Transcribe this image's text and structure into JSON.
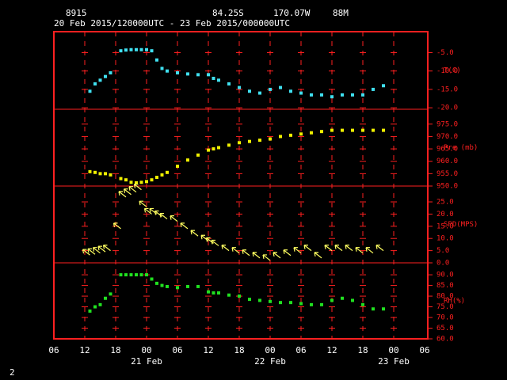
{
  "header": {
    "station": "8915",
    "latitude": "84.25S",
    "longitude": "170.07W",
    "elevation": "88M",
    "period": "20 Feb 2015/120000UTC - 23 Feb 2015/000000UTC"
  },
  "footer": "2",
  "time_axis": {
    "xlim": [
      "2015-02-20 06:00",
      "2015-02-23 06:00"
    ],
    "xticks": [
      {
        "value": "2015-02-20 06:00",
        "label": "06"
      },
      {
        "value": "2015-02-20 12:00",
        "label": "12"
      },
      {
        "value": "2015-02-20 18:00",
        "label": "18"
      },
      {
        "value": "2015-02-21 00:00",
        "label": "00"
      },
      {
        "value": "2015-02-21 06:00",
        "label": "06"
      },
      {
        "value": "2015-02-21 12:00",
        "label": "12"
      },
      {
        "value": "2015-02-21 18:00",
        "label": "18"
      },
      {
        "value": "2015-02-22 00:00",
        "label": "00"
      },
      {
        "value": "2015-02-22 06:00",
        "label": "06"
      },
      {
        "value": "2015-02-22 12:00",
        "label": "12"
      },
      {
        "value": "2015-02-22 18:00",
        "label": "18"
      },
      {
        "value": "2015-02-23 00:00",
        "label": "00"
      },
      {
        "value": "2015-02-23 06:00",
        "label": "06"
      }
    ],
    "day_ticks": [
      {
        "value": "2015-02-21 00:00",
        "label": "21 Feb"
      },
      {
        "value": "2015-02-22 00:00",
        "label": "22 Feb"
      },
      {
        "value": "2015-02-23 00:00",
        "label": "23 Feb"
      }
    ],
    "x": [
      "2015-02-20 13:00",
      "2015-02-20 14:00",
      "2015-02-20 15:00",
      "2015-02-20 16:00",
      "2015-02-20 17:00",
      "2015-02-20 19:00",
      "2015-02-20 20:00",
      "2015-02-20 21:00",
      "2015-02-20 22:00",
      "2015-02-20 23:00",
      "2015-02-21 00:00",
      "2015-02-21 01:00",
      "2015-02-21 02:00",
      "2015-02-21 03:00",
      "2015-02-21 04:00",
      "2015-02-21 06:00",
      "2015-02-21 08:00",
      "2015-02-21 10:00",
      "2015-02-21 12:00",
      "2015-02-21 13:00",
      "2015-02-21 14:00",
      "2015-02-21 16:00",
      "2015-02-21 18:00",
      "2015-02-21 20:00",
      "2015-02-21 22:00",
      "2015-02-22 00:00",
      "2015-02-22 02:00",
      "2015-02-22 04:00",
      "2015-02-22 06:00",
      "2015-02-22 08:00",
      "2015-02-22 10:00",
      "2015-02-22 12:00",
      "2015-02-22 14:00",
      "2015-02-22 16:00",
      "2015-02-22 18:00",
      "2015-02-22 20:00",
      "2015-02-22 22:00"
    ]
  },
  "chart_data": [
    {
      "type": "scatter",
      "ylabel": "T(C)",
      "color": "#40e0f0",
      "ylim": [
        -20.4,
        0.7
      ],
      "yticks": [
        {
          "value": -5,
          "label": "-5.0"
        },
        {
          "value": -10,
          "label": "-10.0"
        },
        {
          "value": -15,
          "label": "-15.0"
        },
        {
          "value": -20,
          "label": "-20.0"
        }
      ],
      "values": [
        -15.5,
        -13.5,
        -12.5,
        -11.5,
        -10.5,
        -4.5,
        -4.3,
        -4.2,
        -4.2,
        -4.2,
        -4.2,
        -4.5,
        -7,
        -9.3,
        -10,
        -10.5,
        -10.8,
        -11,
        -11,
        -12,
        -12.5,
        -13.5,
        -14.5,
        -15.5,
        -16,
        -15,
        -14.5,
        -15.5,
        -16,
        -16.5,
        -16.5,
        -17,
        -16.5,
        -16.5,
        -16.5,
        -15,
        -14
      ]
    },
    {
      "type": "scatter",
      "ylabel": "Pre (mb)",
      "color": "#f0f000",
      "ylim": [
        950,
        981
      ],
      "yticks": [
        {
          "value": 975,
          "label": "975.0"
        },
        {
          "value": 970,
          "label": "970.0"
        },
        {
          "value": 965,
          "label": "965.0"
        },
        {
          "value": 960,
          "label": "960.0"
        },
        {
          "value": 955,
          "label": "955.0"
        },
        {
          "value": 950,
          "label": "950.0"
        }
      ],
      "values": [
        955.8,
        955.5,
        955,
        955,
        954.5,
        953,
        952.5,
        951.5,
        951.3,
        951.5,
        951.8,
        952.5,
        953.5,
        954.5,
        955.5,
        958,
        960.5,
        962.5,
        964.5,
        965,
        965.5,
        966.5,
        967.5,
        968,
        968.5,
        969,
        970,
        970.5,
        971,
        971.5,
        972,
        972.5,
        972.5,
        972.5,
        972.5,
        972.5,
        972.5
      ]
    },
    {
      "type": "wind",
      "ylabel": "SPD(MPS)",
      "color": "#ffff60",
      "ylim": [
        0,
        31.5
      ],
      "yticks": [
        {
          "value": 25,
          "label": "25.0"
        },
        {
          "value": 20,
          "label": "20.0"
        },
        {
          "value": 15,
          "label": "15.0"
        },
        {
          "value": 10,
          "label": "10.0"
        },
        {
          "value": 5,
          "label": "5.0"
        },
        {
          "value": 0,
          "label": "0.0"
        }
      ],
      "values": [
        3.2,
        3.5,
        4,
        4.5,
        5,
        14,
        27,
        28,
        29,
        30,
        23,
        20,
        20,
        19,
        18,
        17,
        14,
        11,
        9,
        8,
        7,
        5,
        4,
        3,
        2,
        1,
        2,
        3,
        4,
        5,
        2,
        5,
        5,
        5,
        4,
        4,
        5
      ]
    },
    {
      "type": "scatter",
      "ylabel": "RH(%)",
      "color": "#20e020",
      "ylim": [
        60,
        95.6
      ],
      "yticks": [
        {
          "value": 90,
          "label": "90.0"
        },
        {
          "value": 85,
          "label": "85.0"
        },
        {
          "value": 80,
          "label": "80.0"
        },
        {
          "value": 75,
          "label": "75.0"
        },
        {
          "value": 70,
          "label": "70.0"
        },
        {
          "value": 65,
          "label": "65.0"
        },
        {
          "value": 60,
          "label": "60.0"
        }
      ],
      "values": [
        73,
        75,
        76,
        79,
        81,
        90,
        90,
        90,
        90,
        90,
        90,
        88,
        86,
        85,
        84.5,
        84,
        84.5,
        84.5,
        82,
        81.5,
        81.5,
        80.5,
        80,
        78.5,
        78,
        77.5,
        77,
        77,
        76.5,
        76,
        76,
        78,
        79,
        78,
        76,
        74,
        74
      ]
    }
  ]
}
